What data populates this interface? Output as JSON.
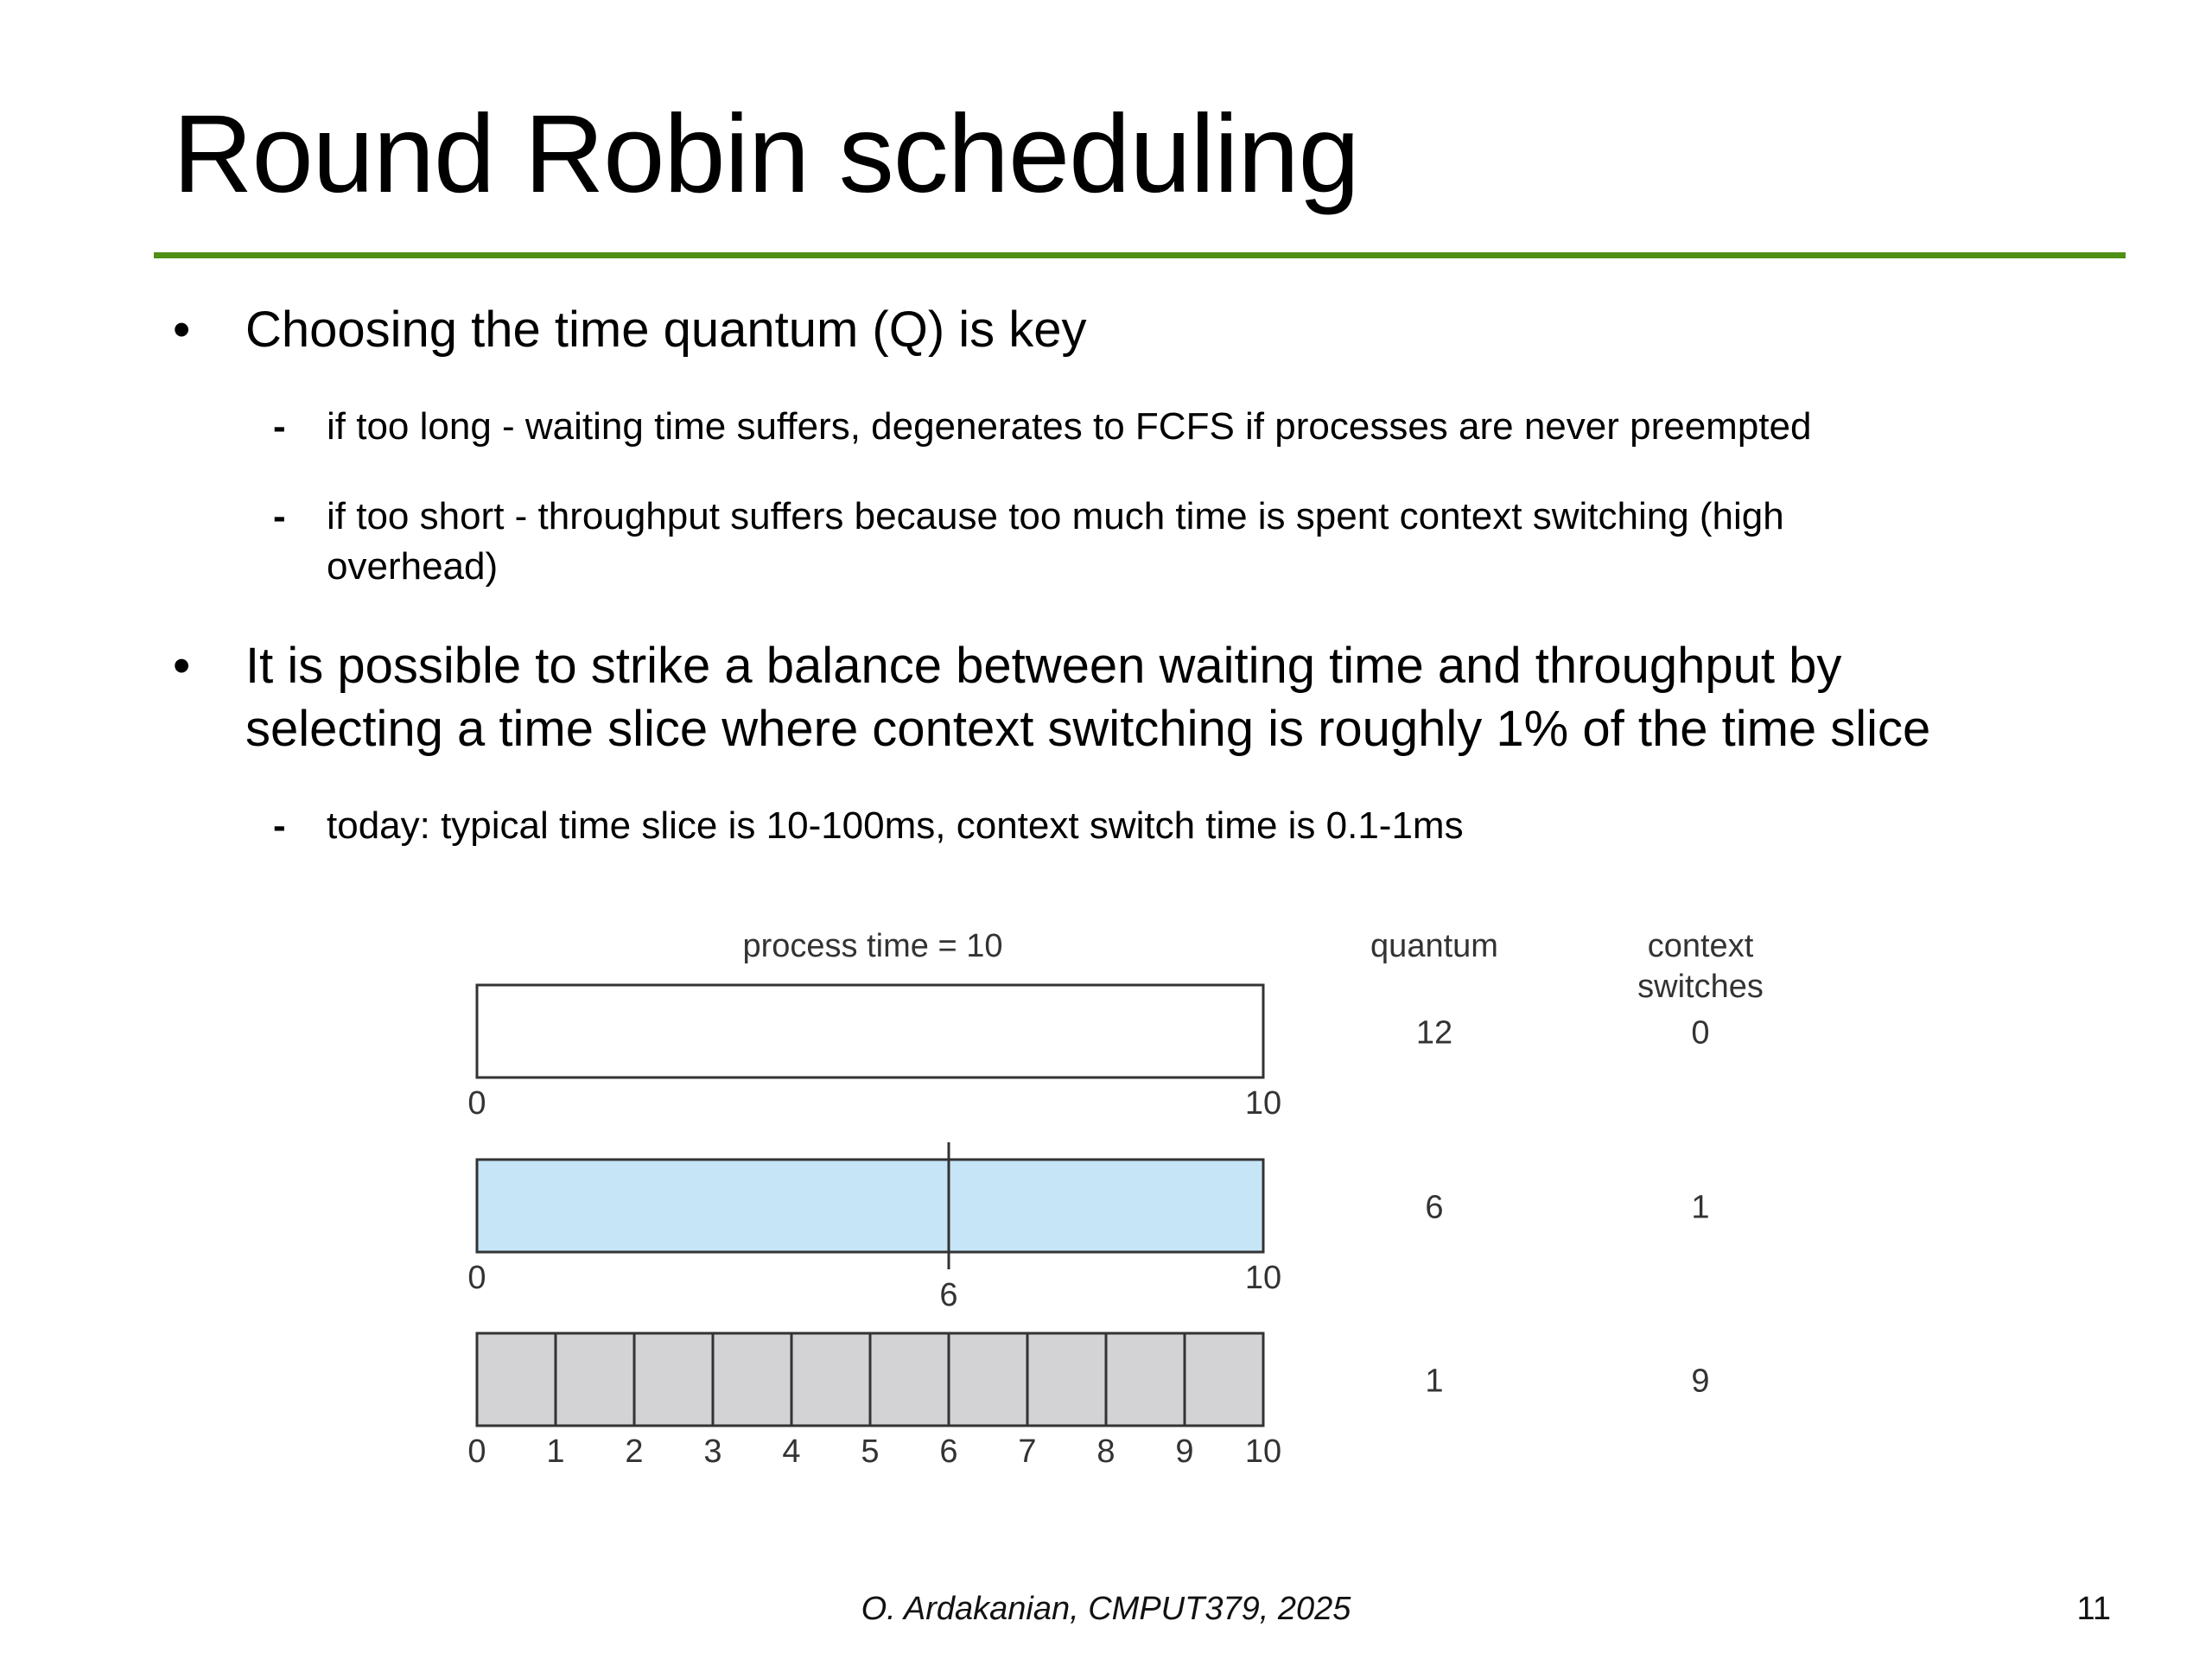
{
  "slide": {
    "title": "Round Robin scheduling",
    "accent_color": "#4e8f14"
  },
  "bullets": [
    {
      "marker": "•",
      "text_lines": [
        "Choosing the time quantum (Q) is key"
      ],
      "sub": [
        {
          "marker": "-",
          "text_lines": [
            "if too long - waiting time suffers, degenerates to FCFS if processes are never preempted"
          ]
        },
        {
          "marker": "-",
          "text_lines": [
            "if too short - throughput suffers because too much time is spent context switching (high",
            "overhead)"
          ]
        }
      ]
    },
    {
      "marker": "•",
      "text_lines": [
        "It is possible to strike a balance between waiting time and throughput by",
        "selecting a time slice where context switching is roughly 1% of the time slice"
      ],
      "sub": [
        {
          "marker": "-",
          "text_lines": [
            "today: typical time slice is 10-100ms, context switch time is 0.1-1ms"
          ]
        }
      ]
    }
  ],
  "diagram": {
    "caption": "process time = 10",
    "process_time": 10,
    "column_headers": {
      "quantum": "quantum",
      "context_switches_line1": "context",
      "context_switches_line2": "switches"
    },
    "rows": [
      {
        "quantum": "12",
        "context_switches": "0",
        "fill_color": "#ffffff",
        "split_points": [],
        "tick_labels": [
          "0",
          "10"
        ]
      },
      {
        "quantum": "6",
        "context_switches": "1",
        "fill_color": "#c6e6f7",
        "split_points": [
          6
        ],
        "tick_labels": [
          "0",
          "6",
          "10"
        ]
      },
      {
        "quantum": "1",
        "context_switches": "9",
        "fill_color": "#d3d3d5",
        "split_points": [
          1,
          2,
          3,
          4,
          5,
          6,
          7,
          8,
          9
        ],
        "tick_labels": [
          "0",
          "1",
          "2",
          "3",
          "4",
          "5",
          "6",
          "7",
          "8",
          "9",
          "10"
        ]
      }
    ]
  },
  "footer": {
    "credit": "O. Ardakanian, CMPUT379, 2025",
    "page_number": "11"
  }
}
